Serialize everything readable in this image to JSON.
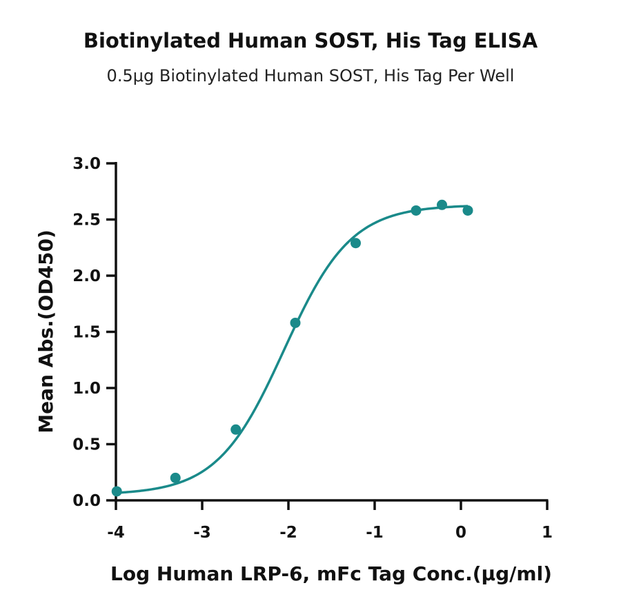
{
  "chart_data": {
    "type": "scatter",
    "title": "Biotinylated Human SOST, His Tag ELISA",
    "subtitle": "0.5μg Biotinylated Human SOST, His Tag Per Well",
    "xlabel": "Log Human LRP-6, mFc Tag Conc.(μg/ml)",
    "ylabel": "Mean Abs.(OD450)",
    "xlim": [
      -4,
      1
    ],
    "ylim": [
      0,
      3
    ],
    "x_ticks": [
      -4,
      -3,
      -2,
      -1,
      0,
      1
    ],
    "x_tick_labels": [
      "-4",
      "-3",
      "-2",
      "-1",
      "0",
      "1"
    ],
    "y_ticks": [
      0,
      0.5,
      1,
      1.5,
      2,
      2.5,
      3
    ],
    "y_tick_labels": [
      "0.0",
      "0.5",
      "1.0",
      "1.5",
      "2.0",
      "2.5",
      "3.0"
    ],
    "grid": false,
    "series": [
      {
        "x": [
          -3.99,
          -3.31,
          -2.61,
          -1.92,
          -1.22,
          -0.52,
          -0.22,
          0.08
        ],
        "y": [
          0.08,
          0.2,
          0.63,
          1.58,
          2.29,
          2.58,
          2.63,
          2.58
        ],
        "color": "#1a8a8a",
        "fit": "4PL",
        "fit_params": {
          "bottom": 0.05,
          "top": 2.63,
          "log_ec50": -2.05,
          "hill": 1.12
        }
      }
    ]
  }
}
